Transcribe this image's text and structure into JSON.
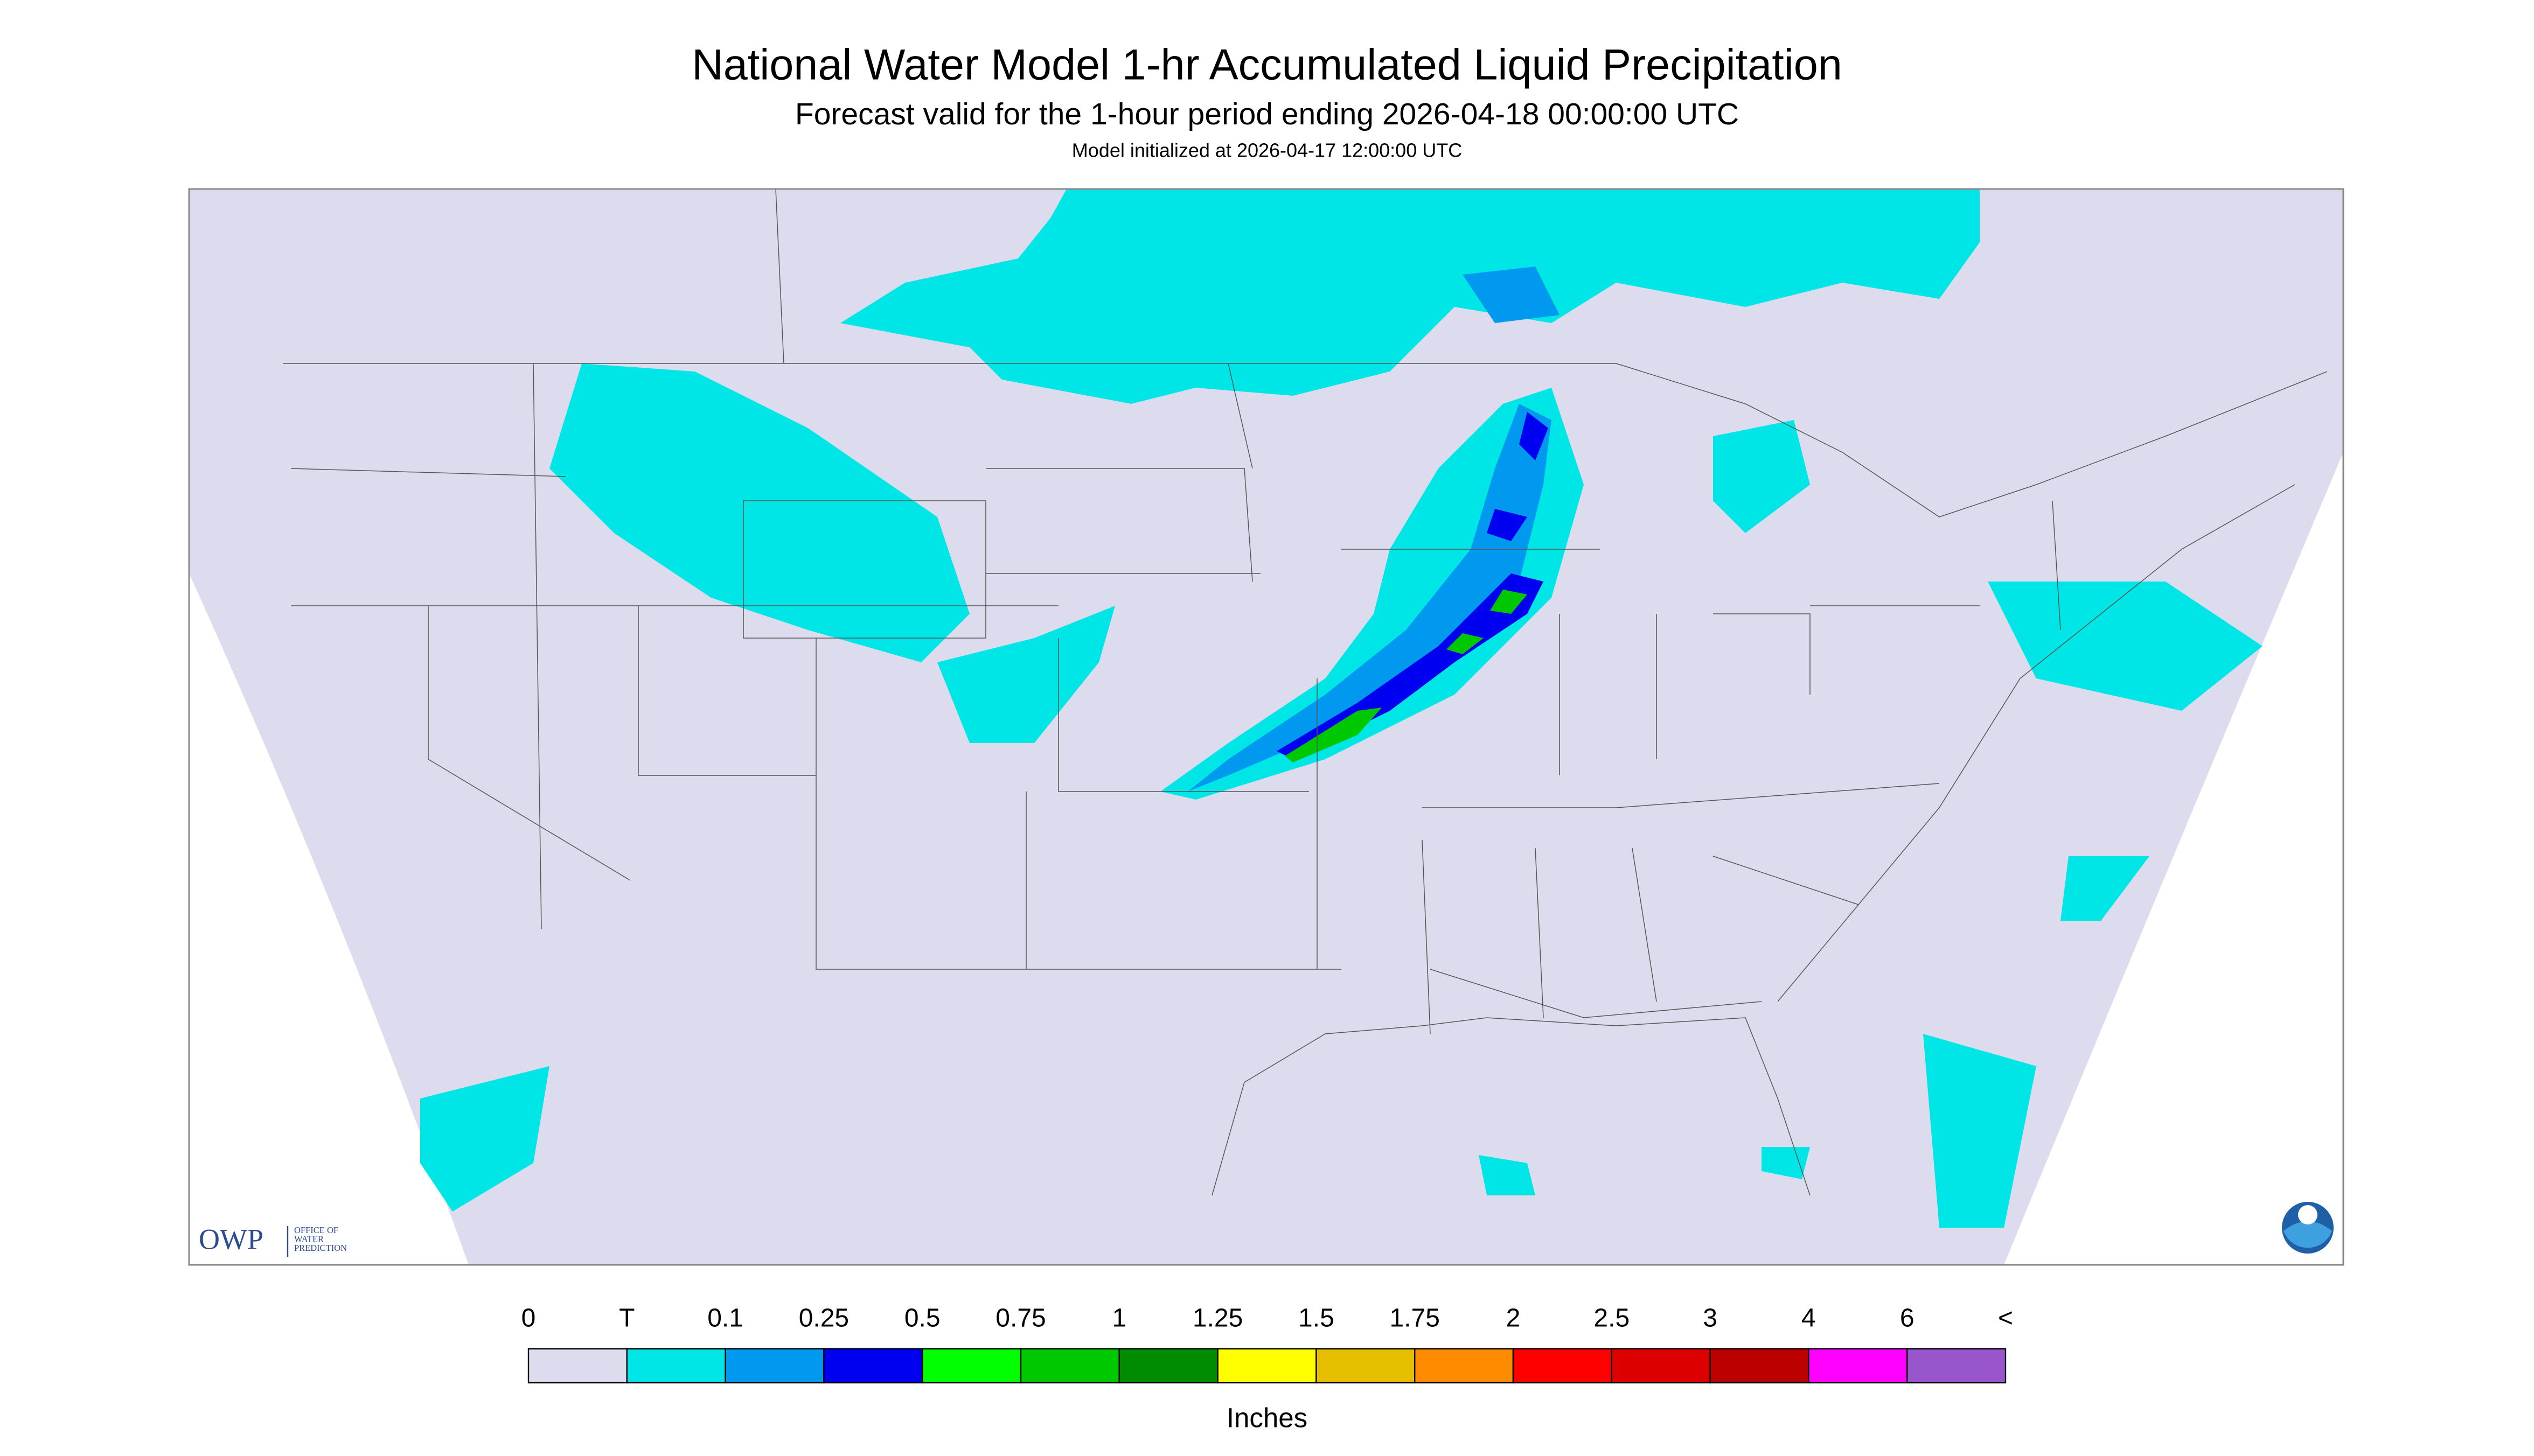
{
  "header": {
    "title": "National Water Model 1-hr Accumulated Liquid Precipitation",
    "subtitle": "Forecast valid for the 1-hour period ending 2026-04-18 00:00:00 UTC",
    "note": "Model initialized at 2026-04-17 12:00:00 UTC"
  },
  "logo": {
    "acronym": "OWP",
    "lines": [
      "OFFICE OF",
      "WATER",
      "PREDICTION"
    ]
  },
  "legend": {
    "labels": [
      "0",
      "T",
      "0.1",
      "0.25",
      "0.5",
      "0.75",
      "1",
      "1.25",
      "1.5",
      "1.75",
      "2",
      "2.5",
      "3",
      "4",
      "6",
      "<"
    ],
    "colors": [
      "#dcdcee",
      "#00e6e6",
      "#0099f0",
      "#0000f0",
      "#00ff00",
      "#00c800",
      "#008c00",
      "#ffff00",
      "#e6be00",
      "#ff8c00",
      "#ff0000",
      "#dc0000",
      "#bc0000",
      "#ff00ff",
      "#9955cc"
    ],
    "unit": "Inches"
  }
}
